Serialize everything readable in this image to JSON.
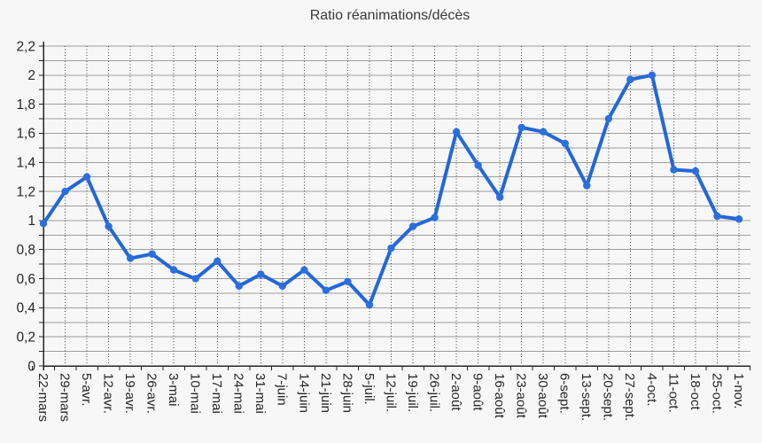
{
  "chart_data": {
    "type": "line",
    "title": "Ratio réanimations/décès",
    "categories": [
      "22-mars",
      "29-mars",
      "5-avr.",
      "12-avr.",
      "19-avr.",
      "26-avr.",
      "3-mai",
      "10-mai",
      "17-mai",
      "24-mai",
      "31-mai",
      "7-juin",
      "14-juin",
      "21-juin",
      "28-juin",
      "5-juil.",
      "12-juil.",
      "19-juil.",
      "26-juil.",
      "2-août",
      "9-août",
      "16-août",
      "23-août",
      "30-août",
      "6-sept.",
      "13-sept.",
      "20-sept.",
      "27-sept.",
      "4-oct.",
      "11-oct.",
      "18-oct",
      "25-oct.",
      "1-nov."
    ],
    "series": [
      {
        "name": "Ratio réanimations/décès",
        "values": [
          0.98,
          1.2,
          1.3,
          0.96,
          0.74,
          0.77,
          0.66,
          0.6,
          0.72,
          0.55,
          0.63,
          0.55,
          0.66,
          0.52,
          0.58,
          0.42,
          0.81,
          0.96,
          1.02,
          1.61,
          1.38,
          1.16,
          1.64,
          1.61,
          1.53,
          1.24,
          1.7,
          1.97,
          2.0,
          1.35,
          1.34,
          1.03,
          1.01
        ]
      }
    ],
    "xlabel": "",
    "ylabel": "",
    "ylim": [
      0,
      2.2
    ],
    "y_major_tick": 0.2,
    "y_minor_gridline": 0.1,
    "ytick_labels": [
      "0",
      "0,2",
      "0,4",
      "0,6",
      "0,8",
      "1",
      "1,2",
      "1,4",
      "1,6",
      "1,8",
      "2",
      "2,2"
    ],
    "xtick_label_rotation_deg": 90,
    "grid": {
      "horizontal": "solid",
      "vertical": "dotted"
    },
    "legend": "none",
    "colors": {
      "line": "#2367d9",
      "marker": "#2b6fdf",
      "h_grid": "#9e9e9e",
      "v_grid": "#454545",
      "axis": "#262626",
      "tick_text": "#262626",
      "title_text": "#3a3a3a",
      "background": "#f7f7f7"
    }
  }
}
